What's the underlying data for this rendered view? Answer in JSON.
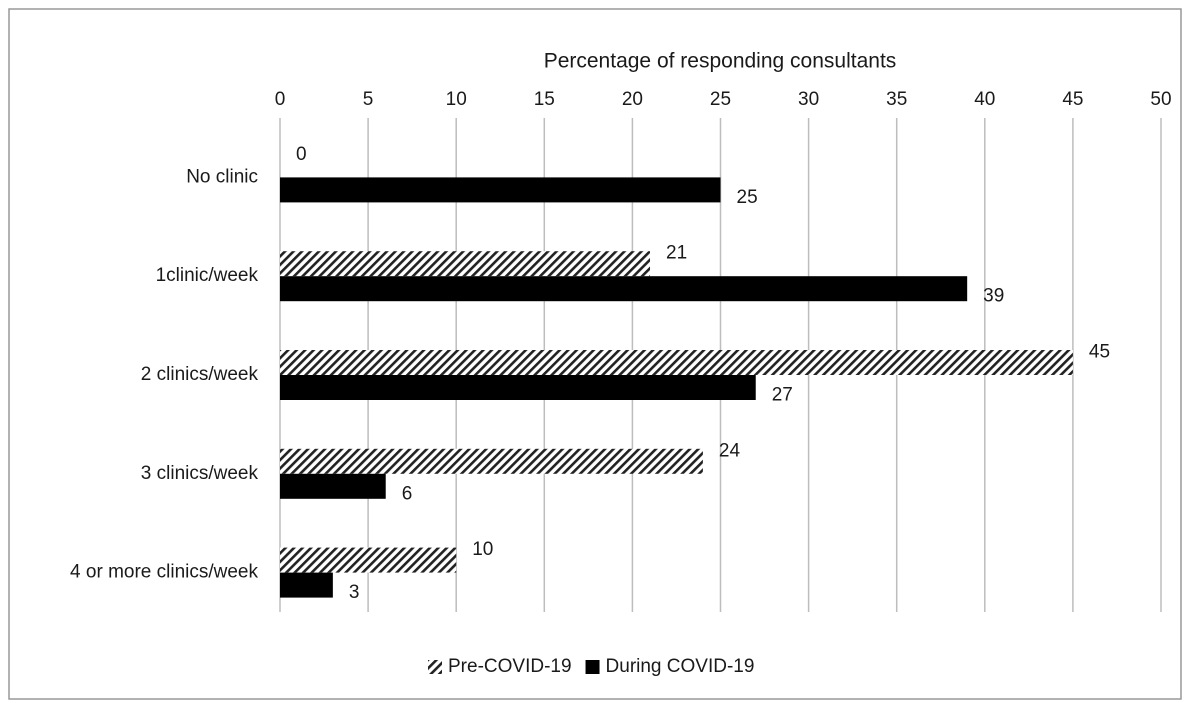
{
  "chart_data": {
    "type": "hbar",
    "x_label": "Percentage of responding consultants",
    "categories": [
      "No clinic",
      "1clinic/week",
      "2 clinics/week",
      "3 clinics/week",
      "4 or more clinics/week"
    ],
    "series": [
      {
        "name": "Pre-COVID-19",
        "color": "#000000",
        "pattern": "diagonal-hatch",
        "values": [
          0,
          21,
          45,
          24,
          10
        ]
      },
      {
        "name": "During COVID-19",
        "color": "#000000",
        "values": [
          25,
          39,
          27,
          6,
          3
        ]
      }
    ],
    "xlim": [
      0,
      50
    ],
    "xticks": [
      0,
      5,
      10,
      15,
      20,
      25,
      30,
      35,
      40,
      45,
      50
    ],
    "grid": true,
    "legend": "bottom"
  }
}
